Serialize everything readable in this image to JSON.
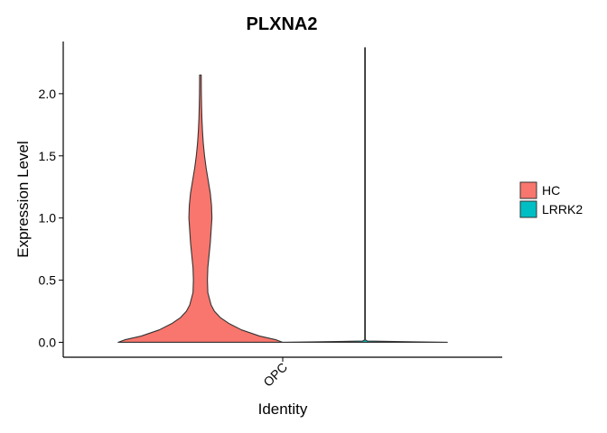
{
  "chart_data": {
    "type": "violin",
    "title": "PLXNA2",
    "xlabel": "Identity",
    "ylabel": "Expression Level",
    "categories": [
      "OPC"
    ],
    "ylim": [
      -0.12,
      2.42
    ],
    "yticks": [
      0.0,
      0.5,
      1.0,
      1.5,
      2.0
    ],
    "ytick_labels": [
      "0.0",
      "0.5",
      "1.0",
      "1.5",
      "2.0"
    ],
    "legend_position": "right",
    "series": [
      {
        "name": "HC",
        "color": "#F8766D",
        "category": "OPC",
        "max_value": 2.15,
        "density_profile": [
          [
            0.0,
            1.0
          ],
          [
            0.02,
            0.92
          ],
          [
            0.05,
            0.72
          ],
          [
            0.1,
            0.5
          ],
          [
            0.15,
            0.35
          ],
          [
            0.2,
            0.24
          ],
          [
            0.25,
            0.17
          ],
          [
            0.3,
            0.13
          ],
          [
            0.35,
            0.11
          ],
          [
            0.4,
            0.09
          ],
          [
            0.5,
            0.085
          ],
          [
            0.6,
            0.09
          ],
          [
            0.7,
            0.105
          ],
          [
            0.8,
            0.12
          ],
          [
            0.9,
            0.13
          ],
          [
            1.0,
            0.14
          ],
          [
            1.1,
            0.135
          ],
          [
            1.2,
            0.12
          ],
          [
            1.3,
            0.095
          ],
          [
            1.4,
            0.07
          ],
          [
            1.5,
            0.05
          ],
          [
            1.6,
            0.035
          ],
          [
            1.7,
            0.025
          ],
          [
            1.8,
            0.018
          ],
          [
            1.9,
            0.014
          ],
          [
            2.0,
            0.011
          ],
          [
            2.1,
            0.01
          ],
          [
            2.15,
            0.01
          ]
        ]
      },
      {
        "name": "LRRK2",
        "color": "#00BFC4",
        "category": "OPC",
        "max_value": 2.37,
        "density_profile": [
          [
            0.0,
            1.0
          ],
          [
            0.004,
            0.6
          ],
          [
            0.01,
            0.03
          ],
          [
            0.02,
            0.004
          ],
          [
            0.5,
            0.004
          ],
          [
            1.0,
            0.004
          ],
          [
            1.5,
            0.004
          ],
          [
            2.0,
            0.004
          ],
          [
            2.37,
            0.004
          ]
        ]
      }
    ],
    "legend": [
      {
        "label": "HC",
        "color": "#F8766D"
      },
      {
        "label": "LRRK2",
        "color": "#00BFC4"
      }
    ]
  }
}
